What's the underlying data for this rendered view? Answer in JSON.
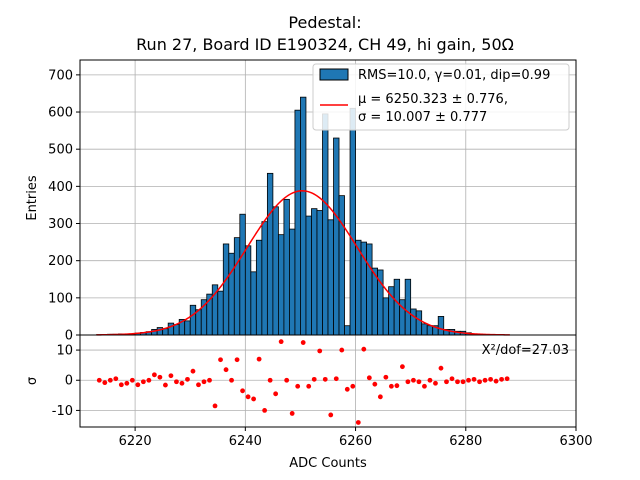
{
  "chart_data": [
    {
      "type": "bar",
      "title": "Pedestal:",
      "subtitle": "Run 27, Board ID E190324, CH 49, hi gain, 50Ω",
      "xlabel": "",
      "ylabel": "Entries",
      "xlim": [
        6210,
        6300
      ],
      "ylim": [
        0,
        740
      ],
      "yticks": [
        0,
        100,
        200,
        300,
        400,
        500,
        600,
        700
      ],
      "grid": true,
      "legend_position": "top-right",
      "bin_width": 1,
      "x": [
        6213,
        6214,
        6215,
        6216,
        6217,
        6218,
        6219,
        6220,
        6221,
        6222,
        6223,
        6224,
        6225,
        6226,
        6227,
        6228,
        6229,
        6230,
        6231,
        6232,
        6233,
        6234,
        6235,
        6236,
        6237,
        6238,
        6239,
        6240,
        6241,
        6242,
        6243,
        6244,
        6245,
        6246,
        6247,
        6248,
        6249,
        6250,
        6251,
        6252,
        6253,
        6254,
        6255,
        6256,
        6257,
        6258,
        6259,
        6260,
        6261,
        6262,
        6263,
        6264,
        6265,
        6266,
        6267,
        6268,
        6269,
        6270,
        6271,
        6272,
        6273,
        6274,
        6275,
        6276,
        6277,
        6278,
        6279,
        6280,
        6281,
        6282,
        6283,
        6284,
        6285,
        6286,
        6287
      ],
      "values": [
        1,
        1,
        2,
        2,
        3,
        2,
        3,
        5,
        7,
        9,
        15,
        20,
        17,
        32,
        28,
        42,
        38,
        80,
        68,
        95,
        110,
        135,
        118,
        245,
        220,
        262,
        325,
        240,
        170,
        255,
        305,
        435,
        345,
        270,
        365,
        285,
        605,
        640,
        320,
        340,
        335,
        595,
        310,
        530,
        375,
        25,
        610,
        255,
        250,
        245,
        180,
        175,
        100,
        130,
        150,
        95,
        150,
        70,
        65,
        30,
        25,
        25,
        50,
        15,
        15,
        10,
        10,
        6,
        3,
        2,
        1,
        1,
        1,
        1,
        0
      ],
      "series": [
        {
          "name": "RMS=10.0, γ=0.01, dip=0.99",
          "kind": "histogram",
          "color": "#1f77b4"
        },
        {
          "name": "μ = 6250.323 ± 0.776,",
          "name_line2": "σ = 10.007 ± 0.777",
          "kind": "gaussian-fit",
          "color": "#ff0000",
          "mu": 6250.323,
          "sigma": 10.007,
          "amplitude": 388
        }
      ]
    },
    {
      "type": "scatter",
      "xlabel": "ADC Counts",
      "ylabel": "σ",
      "xlim": [
        6210,
        6300
      ],
      "ylim": [
        -15.5,
        15
      ],
      "xticks": [
        6220,
        6240,
        6260,
        6280,
        6300
      ],
      "yticks": [
        -10,
        0,
        10
      ],
      "grid": true,
      "annotation": "X²/dof=27.03",
      "color": "#ff0000",
      "x": [
        6213.5,
        6214.5,
        6215.5,
        6216.5,
        6217.5,
        6218.5,
        6219.5,
        6220.5,
        6221.5,
        6222.5,
        6223.5,
        6224.5,
        6225.5,
        6226.5,
        6227.5,
        6228.5,
        6229.5,
        6230.5,
        6231.5,
        6232.5,
        6233.5,
        6234.5,
        6235.5,
        6236.5,
        6237.5,
        6238.5,
        6239.5,
        6240.5,
        6241.5,
        6242.5,
        6243.5,
        6244.5,
        6245.5,
        6246.5,
        6247.5,
        6248.5,
        6249.5,
        6250.5,
        6251.5,
        6252.5,
        6253.5,
        6254.5,
        6255.5,
        6256.5,
        6257.5,
        6258.5,
        6259.5,
        6260.5,
        6261.5,
        6262.5,
        6263.5,
        6264.5,
        6265.5,
        6266.5,
        6267.5,
        6268.5,
        6269.5,
        6270.5,
        6271.5,
        6272.5,
        6273.5,
        6274.5,
        6275.5,
        6276.5,
        6277.5,
        6278.5,
        6279.5,
        6280.5,
        6281.5,
        6282.5,
        6283.5,
        6284.5,
        6285.5,
        6286.5,
        6287.5
      ],
      "values": [
        0,
        -0.8,
        0,
        0.5,
        -1.5,
        -1,
        0,
        -1.5,
        -0.5,
        0,
        1.8,
        1,
        -1.6,
        1.5,
        -0.5,
        -1,
        0.3,
        3,
        -1.5,
        -0.5,
        0,
        -8.5,
        6.8,
        3.5,
        0,
        6.8,
        -3.5,
        -5.5,
        -6.2,
        7,
        -10,
        0,
        -4.5,
        12.8,
        0,
        -11,
        -2,
        12.5,
        -2,
        0.3,
        9.7,
        0.3,
        -11.5,
        0.5,
        10,
        -3,
        -2,
        -14,
        10.3,
        0.8,
        -1.3,
        -5.5,
        1,
        -2,
        -1.8,
        4.5,
        -0.5,
        0,
        -0.5,
        -2,
        0,
        -1,
        4,
        -0.5,
        0.5,
        -0.5,
        -0.5,
        0,
        0.3,
        -0.5,
        0,
        0.3,
        -0.3,
        0.3,
        0.5
      ]
    }
  ]
}
